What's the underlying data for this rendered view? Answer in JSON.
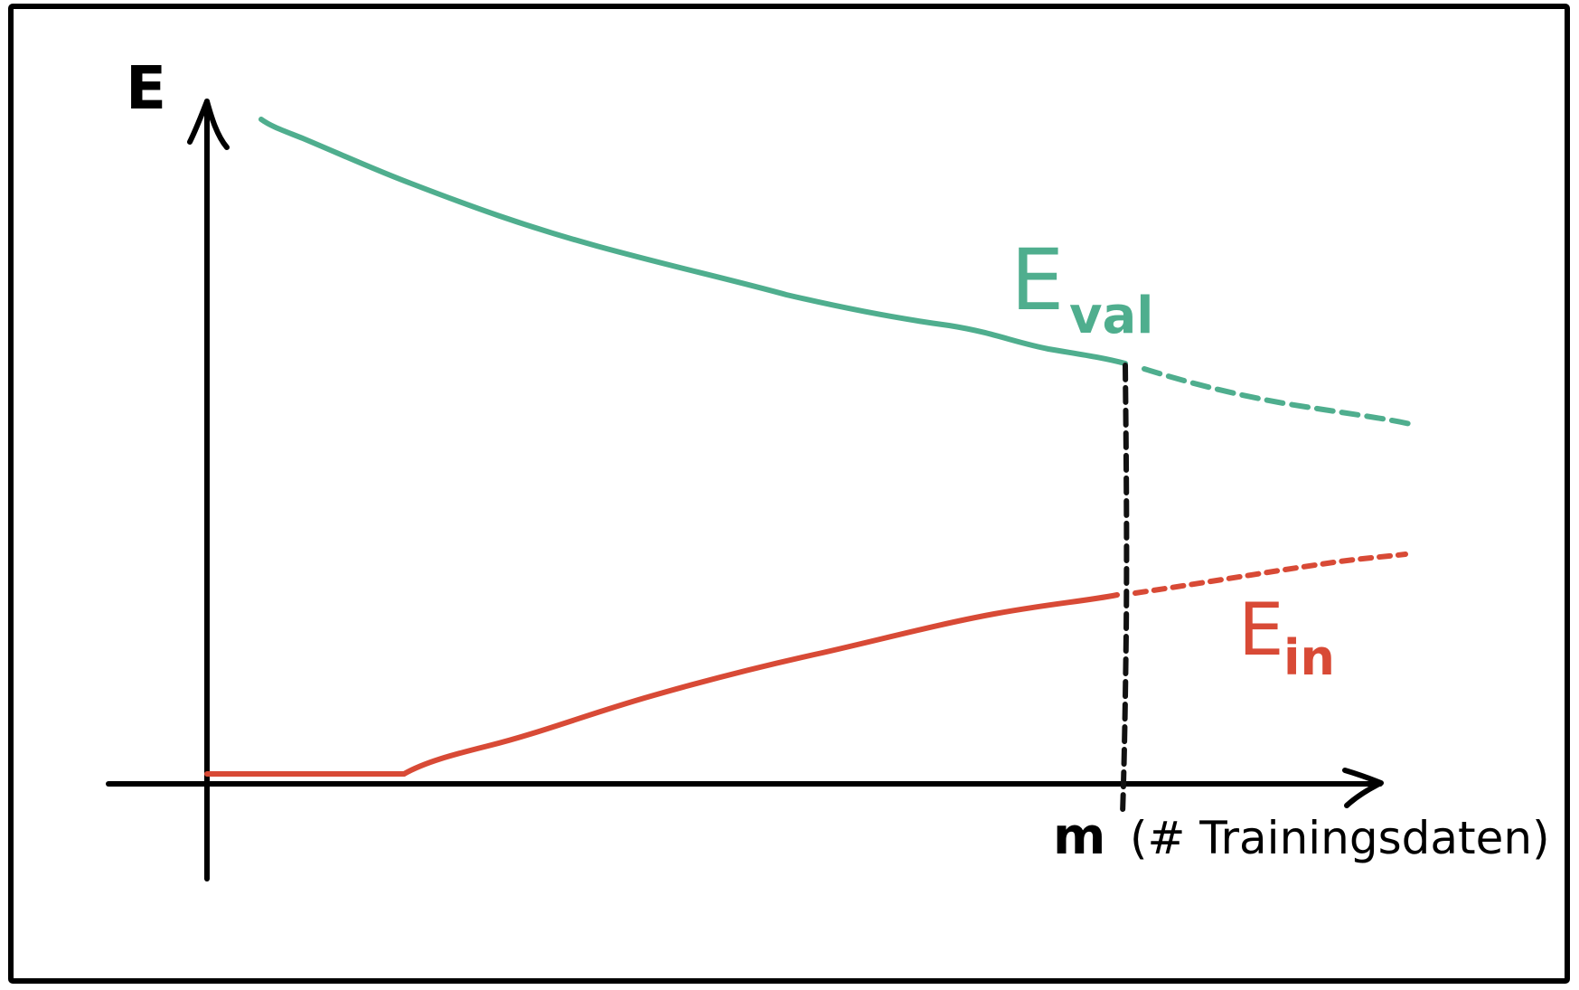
{
  "y_axis": {
    "label": "E"
  },
  "x_axis": {
    "label_var": "m",
    "label_note": "(# Trainingsdaten)"
  },
  "curves": {
    "validation": {
      "main": "E",
      "sub": "val",
      "color": "#4fae8e"
    },
    "in_sample": {
      "main": "E",
      "sub": "in",
      "color": "#d84a36"
    }
  },
  "marker_color": "#111111"
}
